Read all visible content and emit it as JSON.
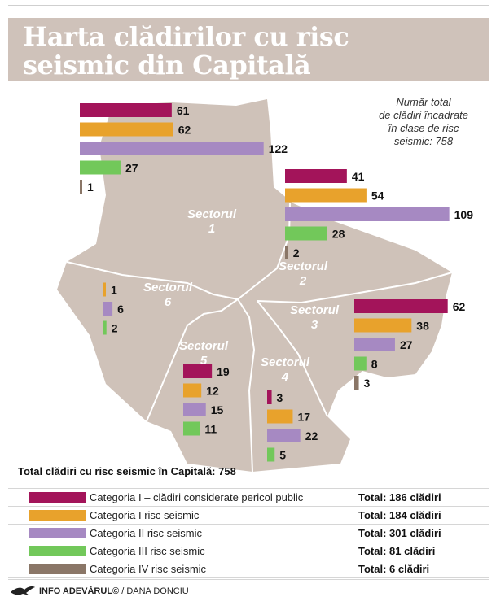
{
  "header": {
    "title_line1": "Harta clădirilor cu risc",
    "title_line2": "seismic din Capitală"
  },
  "note": {
    "line1": "Număr total",
    "line2": "de clădiri încadrate",
    "line3": "în clase de risc",
    "line4": "seismic: 758"
  },
  "total_all": "Total clădiri cu risc seismic în Capitală: 758",
  "legend": {
    "items": [
      {
        "label": "Categoria I – clădiri considerate pericol public",
        "total": "Total: 186 clădiri",
        "color": "#a3145a"
      },
      {
        "label": "Categoria I risc seismic",
        "total": "Total: 184 clădiri",
        "color": "#e8a22c"
      },
      {
        "label": "Categoria II risc seismic",
        "total": "Total: 301 clădiri",
        "color": "#a689c2"
      },
      {
        "label": "Categoria III risc seismic",
        "total": "Total: 81 clădiri",
        "color": "#72c85a"
      },
      {
        "label": "Categoria IV risc seismic",
        "total": "Total: 6 clădiri",
        "color": "#8a7667"
      }
    ]
  },
  "footer": {
    "brand": "INFO ADEVĂRUL©",
    "author": "/ DANA DONCIU"
  },
  "chart_data": {
    "type": "bar",
    "categories": [
      "Categoria I – clădiri considerate pericol public",
      "Categoria I risc seismic",
      "Categoria II risc seismic",
      "Categoria III risc seismic",
      "Categoria IV risc seismic"
    ],
    "series": [
      {
        "name": "Sectorul 1",
        "word": "Sectorul",
        "num": "1",
        "values": [
          61,
          62,
          122,
          27,
          1
        ]
      },
      {
        "name": "Sectorul 2",
        "word": "Sectorul",
        "num": "2",
        "values": [
          41,
          54,
          109,
          28,
          2
        ]
      },
      {
        "name": "Sectorul 3",
        "word": "Sectorul",
        "num": "3",
        "values": [
          62,
          38,
          27,
          8,
          3
        ]
      },
      {
        "name": "Sectorul 4",
        "word": "Sectorul",
        "num": "4",
        "values": [
          3,
          17,
          22,
          5,
          0
        ]
      },
      {
        "name": "Sectorul 5",
        "word": "Sectorul",
        "num": "5",
        "values": [
          19,
          12,
          15,
          11,
          0
        ]
      },
      {
        "name": "Sectorul 6",
        "word": "Sectorul",
        "num": "6",
        "values": [
          0,
          1,
          6,
          2,
          0
        ]
      }
    ],
    "colors": [
      "#a3145a",
      "#e8a22c",
      "#a689c2",
      "#72c85a",
      "#8a7667"
    ],
    "map_color": "#cfc2b9",
    "border_color": "#ffffff"
  }
}
